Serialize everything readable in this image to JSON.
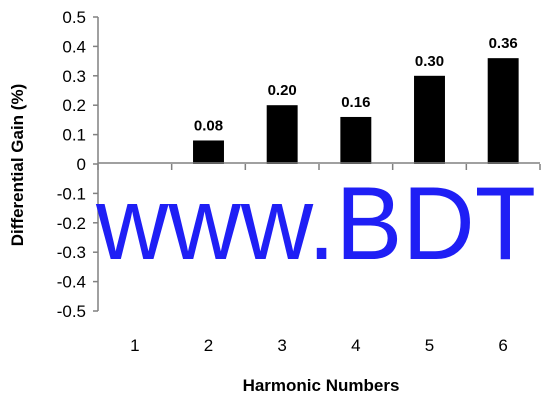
{
  "chart_data": {
    "type": "bar",
    "categories": [
      "1",
      "2",
      "3",
      "4",
      "5",
      "6"
    ],
    "values": [
      0,
      0.08,
      0.2,
      0.16,
      0.3,
      0.36
    ],
    "data_labels": [
      "",
      "0.08",
      "0.20",
      "0.16",
      "0.30",
      "0.36"
    ],
    "xlabel": "Harmonic Numbers",
    "ylabel": "Differential Gain (%)",
    "ylim": [
      -0.5,
      0.5
    ],
    "yticks": [
      0.5,
      0.4,
      0.3,
      0.2,
      0.1,
      0,
      -0.1,
      -0.2,
      -0.3,
      -0.4,
      -0.5
    ],
    "ytick_labels": [
      "0.5",
      "0.4",
      "0.3",
      "0.2",
      "0.1",
      "0",
      "-0.1",
      "-0.2",
      "-0.3",
      "-0.4",
      "-0.5"
    ],
    "grid": false,
    "bar_color": "#000000"
  },
  "watermark": {
    "text": "www.BDT",
    "color": "#1f1ff5"
  }
}
